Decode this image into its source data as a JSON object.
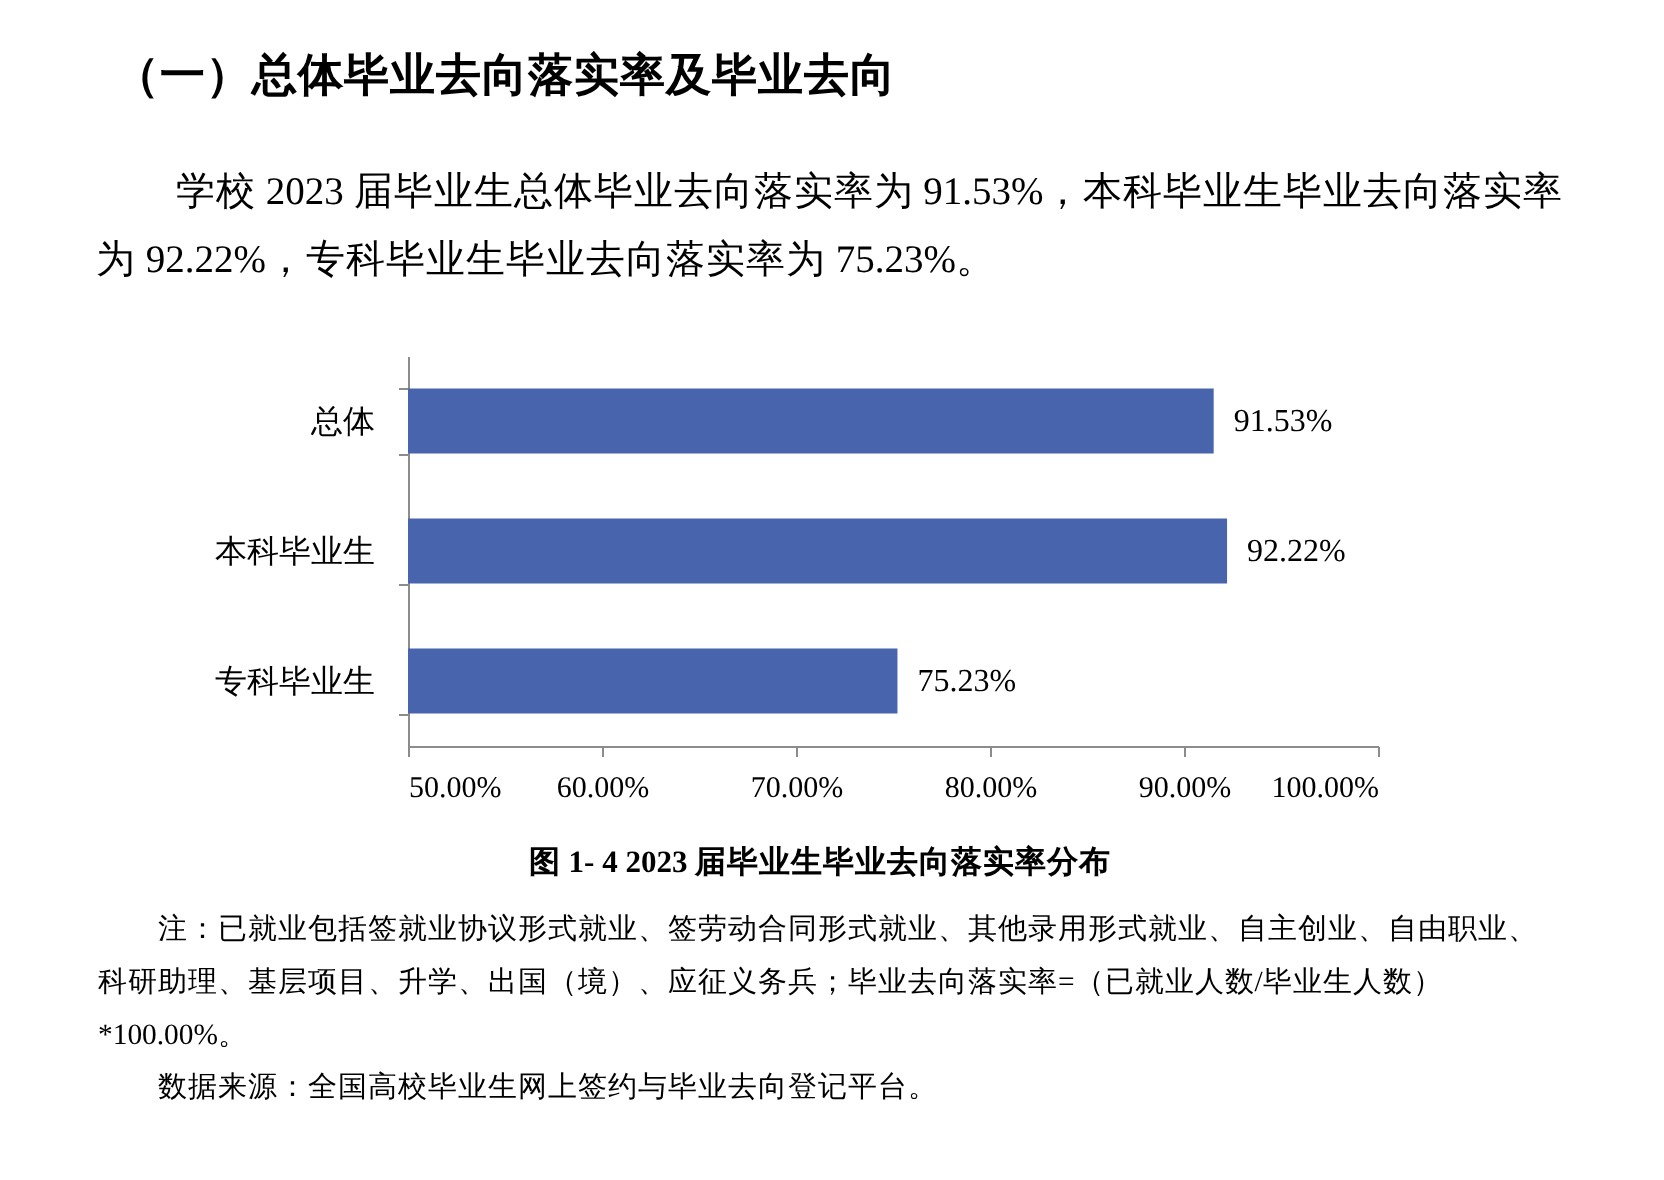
{
  "chart_data": {
    "type": "bar",
    "orientation": "horizontal",
    "title": "（一）总体毕业去向落实率及毕业去向",
    "subtitle": "学校 2023 届毕业生总体毕业去向落实率为 91.53%，本科毕业生毕业去向落实率为 92.22%，专科毕业生毕业去向落实率为 75.23%。",
    "categories": [
      "总体",
      "本科毕业生",
      "专科毕业生"
    ],
    "values": [
      91.53,
      92.22,
      75.23
    ],
    "value_labels": [
      "91.53%",
      "92.22%",
      "75.23%"
    ],
    "color": "#4864ac",
    "xlim": [
      50,
      100
    ],
    "xticks": [
      {
        "value": 50,
        "label": "50.00%"
      },
      {
        "value": 60,
        "label": "60.00%"
      },
      {
        "value": 70,
        "label": "70.00%"
      },
      {
        "value": 80,
        "label": "80.00%"
      },
      {
        "value": 90,
        "label": "90.00%"
      },
      {
        "value": 100,
        "label": "100.00%"
      }
    ],
    "grid": false,
    "annotations": [
      "图 1- 4 2023 届毕业生毕业去向落实率分布",
      "注：已就业包括签就业协议形式就业、签劳动合同形式就业、其他录用形式就业、自主创业、自由职业、科研助理、基层项目、升学、出国（境）、应征义务兵；毕业去向落实率=（已就业人数/毕业生人数）*100.00%。",
      "数据来源：全国高校毕业生网上签约与毕业去向登记平台。"
    ]
  }
}
